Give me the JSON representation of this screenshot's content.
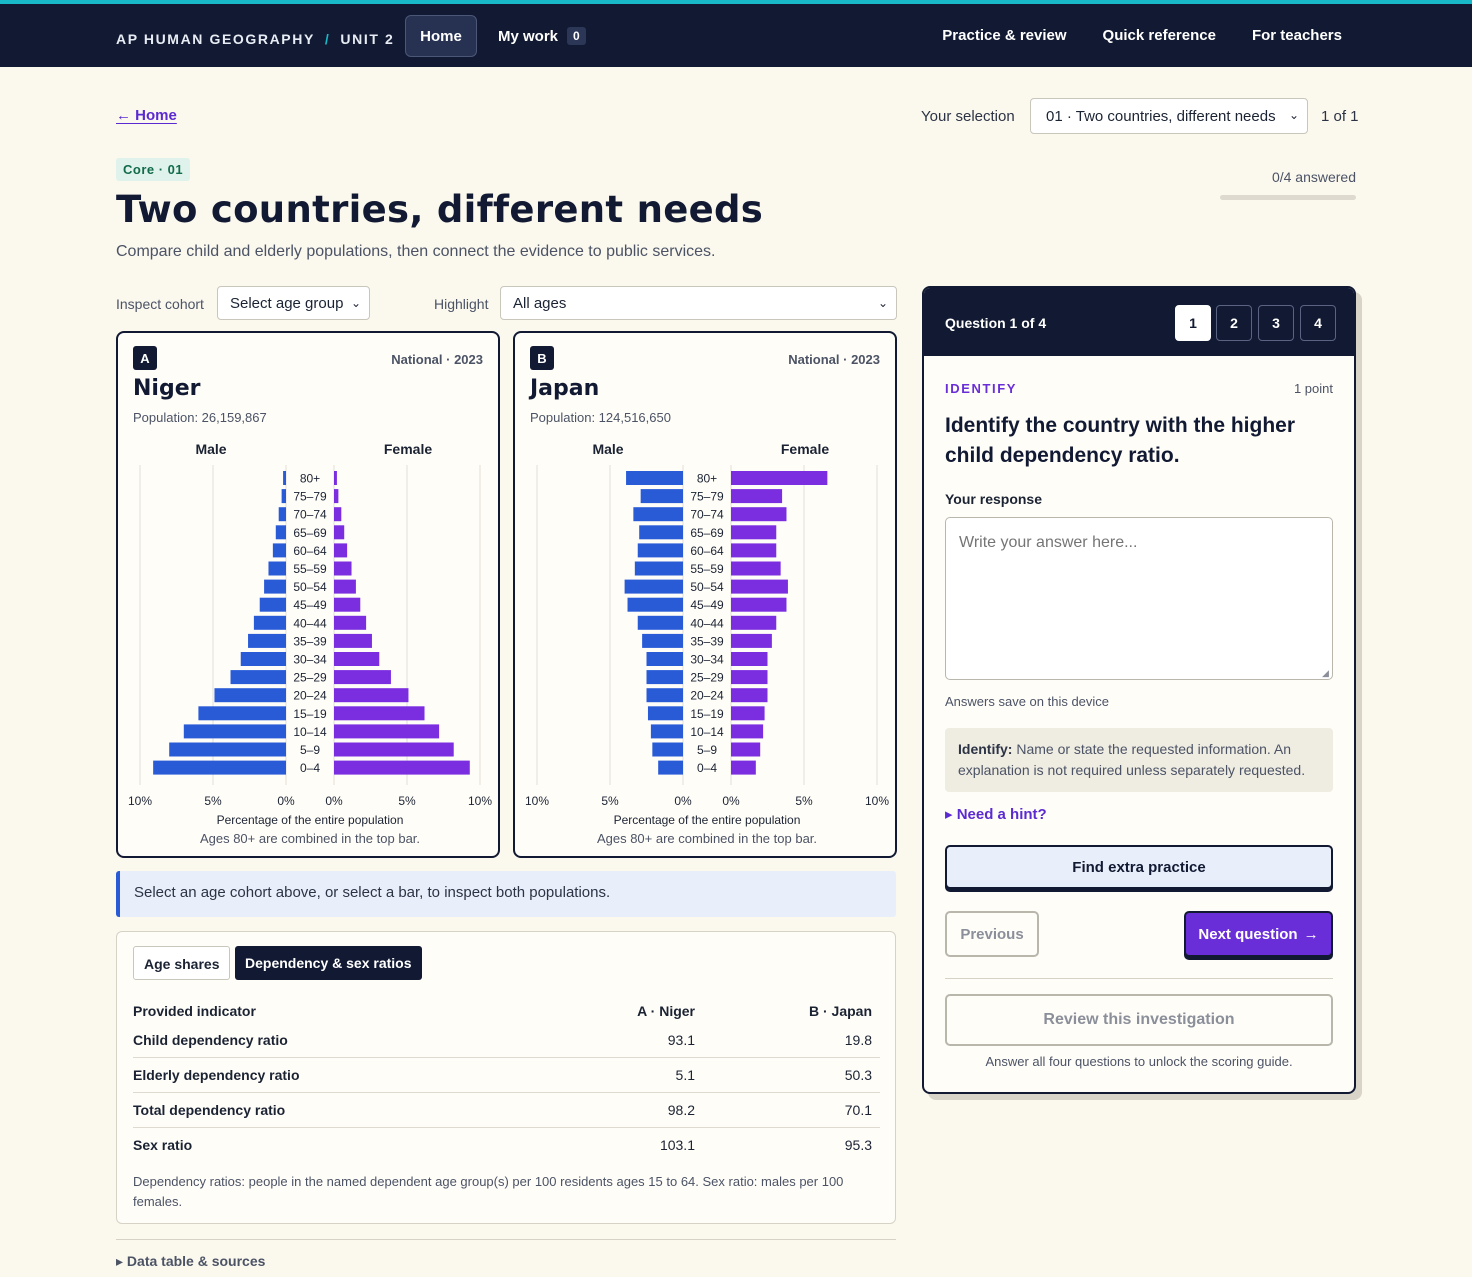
{
  "nav": {
    "course": "AP HUMAN GEOGRAPHY",
    "divider": "/",
    "unit": "UNIT 2",
    "home": "Home",
    "mywork": "My work",
    "mywork_count": "0",
    "links": [
      "Practice & review",
      "Quick reference",
      "For teachers"
    ]
  },
  "header": {
    "back": "← Home",
    "selection_label": "Your selection",
    "selection_value": "01 · Two countries, different needs",
    "selection_count": "1 of 1",
    "badge": "Core · 01",
    "answered": "0/4 answered",
    "progress": 0,
    "title": "Two countries, different needs",
    "subtitle": "Compare child and elderly populations, then connect the evidence to public services."
  },
  "filters": {
    "cohort_label": "Inspect cohort",
    "cohort_value": "Select age group",
    "highlight_label": "Highlight",
    "highlight_value": "All ages"
  },
  "pyramids": [
    {
      "letter": "A",
      "meta": "National · 2023",
      "country": "Niger",
      "population": "Population: 26,159,867",
      "male_label": "Male",
      "female_label": "Female",
      "xlabel": "Percentage of the entire population",
      "note": "Ages 80+ are combined in the top bar."
    },
    {
      "letter": "B",
      "meta": "National · 2023",
      "country": "Japan",
      "population": "Population: 124,516,650",
      "male_label": "Male",
      "female_label": "Female",
      "xlabel": "Percentage of the entire population",
      "note": "Ages 80+ are combined in the top bar."
    }
  ],
  "chart_data": [
    {
      "type": "bar",
      "title": "Niger",
      "categories": [
        "80+",
        "75–79",
        "70–74",
        "65–69",
        "60–64",
        "55–59",
        "50–54",
        "45–49",
        "40–44",
        "35–39",
        "30–34",
        "25–29",
        "20–24",
        "15–19",
        "10–14",
        "5–9",
        "0–4"
      ],
      "series": [
        {
          "name": "Male",
          "values": [
            0.2,
            0.3,
            0.5,
            0.7,
            0.9,
            1.2,
            1.5,
            1.8,
            2.2,
            2.6,
            3.1,
            3.8,
            4.9,
            6.0,
            7.0,
            8.0,
            9.1
          ]
        },
        {
          "name": "Female",
          "values": [
            0.2,
            0.3,
            0.5,
            0.7,
            0.9,
            1.2,
            1.5,
            1.8,
            2.2,
            2.6,
            3.1,
            3.9,
            5.1,
            6.2,
            7.2,
            8.2,
            9.3
          ]
        }
      ],
      "xticks": [
        "10%",
        "5%",
        "0%",
        "0%",
        "5%",
        "10%"
      ],
      "xlim": [
        0,
        10
      ],
      "xlabel": "Percentage of the entire population"
    },
    {
      "type": "bar",
      "title": "Japan",
      "categories": [
        "80+",
        "75–79",
        "70–74",
        "65–69",
        "60–64",
        "55–59",
        "50–54",
        "45–49",
        "40–44",
        "35–39",
        "30–34",
        "25–29",
        "20–24",
        "15–19",
        "10–14",
        "5–9",
        "0–4"
      ],
      "series": [
        {
          "name": "Male",
          "values": [
            3.9,
            2.9,
            3.4,
            3.0,
            3.1,
            3.3,
            4.0,
            3.8,
            3.1,
            2.8,
            2.5,
            2.5,
            2.5,
            2.4,
            2.2,
            2.1,
            1.7
          ]
        },
        {
          "name": "Female",
          "values": [
            6.6,
            3.5,
            3.8,
            3.1,
            3.1,
            3.4,
            3.9,
            3.8,
            3.1,
            2.8,
            2.5,
            2.5,
            2.5,
            2.3,
            2.2,
            2.0,
            1.7
          ]
        }
      ],
      "xticks": [
        "10%",
        "5%",
        "0%",
        "0%",
        "5%",
        "10%"
      ],
      "xlim": [
        0,
        10
      ],
      "xlabel": "Percentage of the entire population"
    }
  ],
  "info": "Select an age cohort above, or select a bar, to inspect both populations.",
  "table": {
    "tabs": [
      "Age shares",
      "Dependency & sex ratios"
    ],
    "headers": [
      "Provided indicator",
      "A · Niger",
      "B · Japan"
    ],
    "rows": [
      [
        "Child dependency ratio",
        "93.1",
        "19.8"
      ],
      [
        "Elderly dependency ratio",
        "5.1",
        "50.3"
      ],
      [
        "Total dependency ratio",
        "98.2",
        "70.1"
      ],
      [
        "Sex ratio",
        "103.1",
        "95.3"
      ]
    ],
    "note": "Dependency ratios: people in the named dependent age group(s) per 100 residents ages 15 to 64. Sex ratio: males per 100 females.",
    "sources": "Data table & sources"
  },
  "question": {
    "header": "Question 1 of 4",
    "numbers": [
      "1",
      "2",
      "3",
      "4"
    ],
    "type": "IDENTIFY",
    "points": "1 point",
    "text": "Identify the country with the higher child dependency ratio.",
    "response_label": "Your response",
    "placeholder": "Write your answer here...",
    "save_note": "Answers save on this device",
    "tip_label": "Identify:",
    "tip_text": "Name or state the requested information. An explanation is not required unless separately requested.",
    "hint": "Need a hint?",
    "extra": "Find extra practice",
    "previous": "Previous",
    "next": "Next question",
    "review": "Review this investigation",
    "review_note": "Answer all four questions to unlock the scoring guide."
  },
  "colors": {
    "male": "#2a5bd7",
    "female": "#7b2ee0",
    "navy": "#121a33",
    "accent": "#6a2ed8"
  },
  "icons": {
    "back": "arrow-left-icon",
    "next": "arrow-right-icon",
    "hint": "caret-right-icon",
    "select": "chevron-down-icon"
  }
}
